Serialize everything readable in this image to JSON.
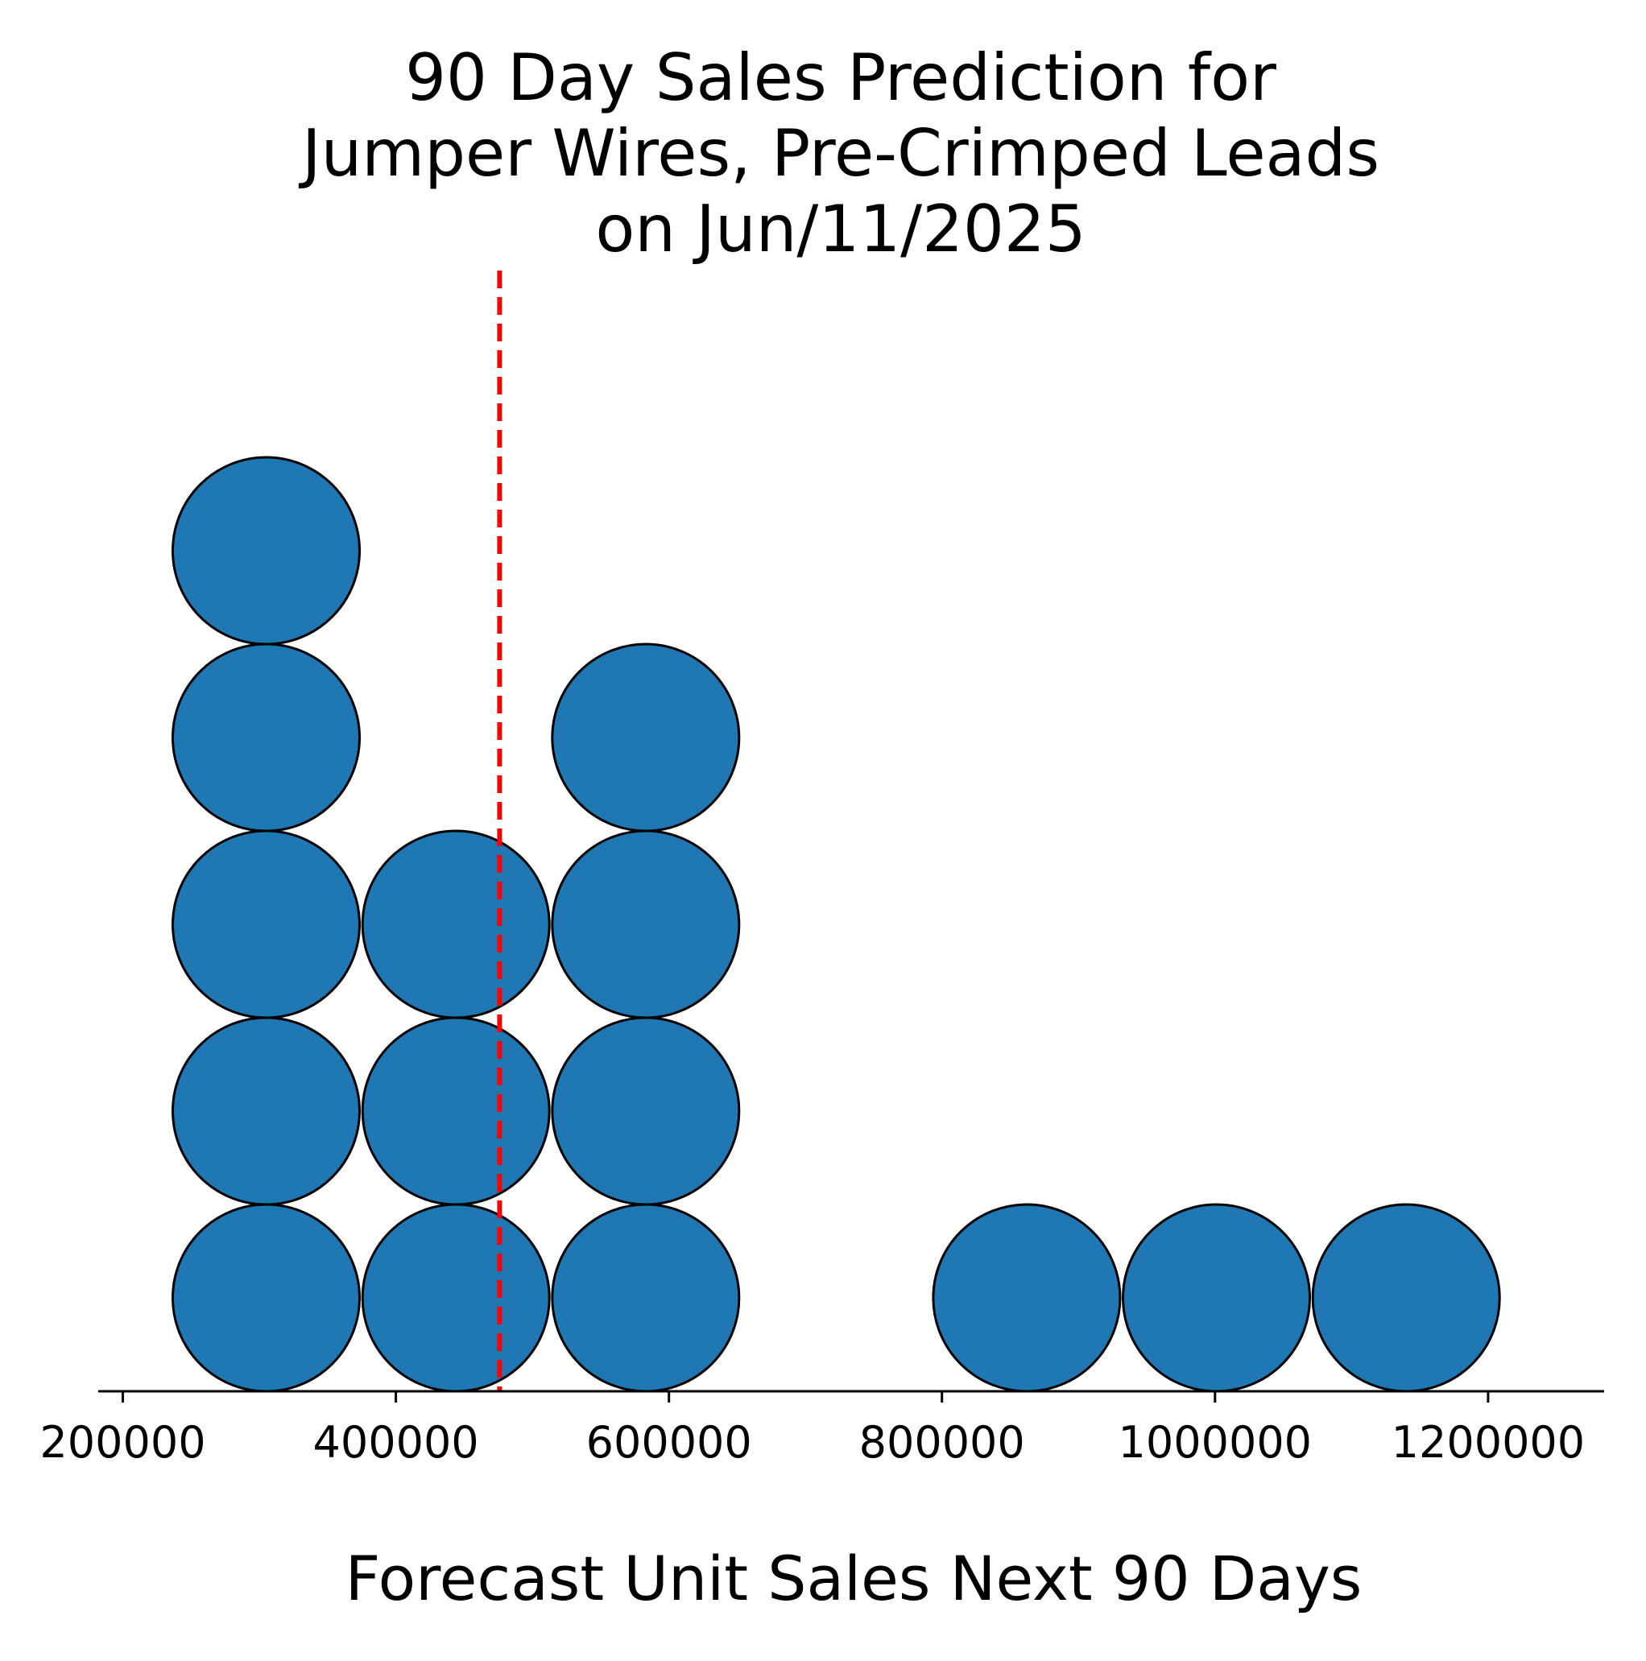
{
  "chart_data": {
    "type": "scatter",
    "subtype": "dot-plot",
    "title_lines": [
      "90 Day Sales Prediction for",
      "Jumper Wires, Pre-Crimped Leads",
      "on Jun/11/2025"
    ],
    "xlabel": "Forecast Unit Sales Next 90 Days",
    "ylabel": "",
    "xlim": [
      182000,
      1285000
    ],
    "x_ticks": [
      200000,
      400000,
      600000,
      800000,
      1000000,
      1200000
    ],
    "x_tick_labels": [
      "200000",
      "400000",
      "600000",
      "800000",
      "1000000",
      "1200000"
    ],
    "y_axis_visible": false,
    "grid": false,
    "legend": "none",
    "dot_color": "#1f77b4",
    "dot_edge_color": "#000000",
    "reference_line": {
      "x": 476000,
      "color": "#ff0000",
      "style": "dashed"
    },
    "stacks": [
      {
        "x": 305000,
        "count": 5
      },
      {
        "x": 444000,
        "count": 3
      },
      {
        "x": 583000,
        "count": 4
      },
      {
        "x": 862000,
        "count": 1
      },
      {
        "x": 1001000,
        "count": 1
      },
      {
        "x": 1140000,
        "count": 1
      }
    ]
  }
}
